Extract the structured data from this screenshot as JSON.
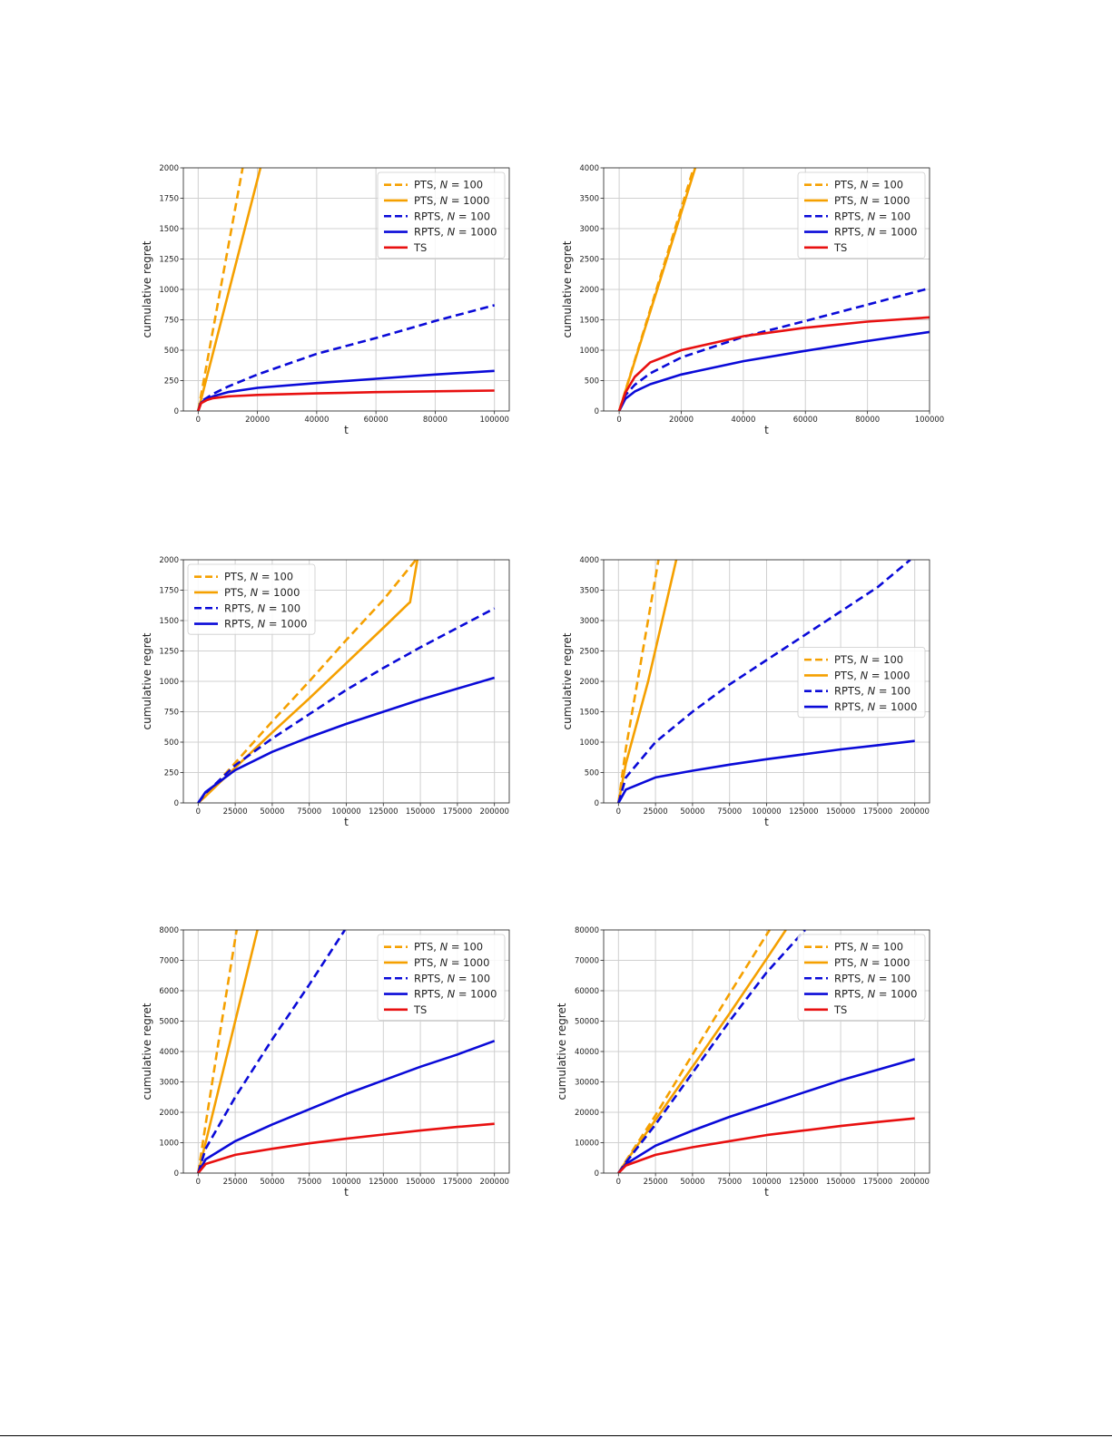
{
  "page": {
    "background": "#ffffff"
  },
  "colors": {
    "orange": "#f5a000",
    "blue": "#0a0ad8",
    "red": "#e81010",
    "grid": "#d0d0d0"
  },
  "chart_data": [
    {
      "type": "line",
      "ylabel": "cumulative regret",
      "xlabel": "t",
      "xlim": [
        -5000,
        105000
      ],
      "ylim": [
        0,
        2000
      ],
      "xticks": [
        0,
        20000,
        40000,
        60000,
        80000,
        100000
      ],
      "yticks": [
        0,
        250,
        500,
        750,
        1000,
        1250,
        1500,
        1750,
        2000
      ],
      "grid": true,
      "legend_position": "top-right",
      "series": [
        {
          "name": "PTS, N = 100",
          "name_prefix": "PTS, ",
          "name_var": "N",
          "name_suffix": " = 100",
          "color": "#f5a000",
          "dash": true,
          "x": [
            0,
            15000
          ],
          "y": [
            0,
            2000
          ]
        },
        {
          "name": "PTS, N = 1000",
          "name_prefix": "PTS, ",
          "name_var": "N",
          "name_suffix": " = 1000",
          "color": "#f5a000",
          "dash": false,
          "x": [
            0,
            21000
          ],
          "y": [
            0,
            2000
          ]
        },
        {
          "name": "RPTS, N = 100",
          "name_prefix": "RPTS, ",
          "name_var": "N",
          "name_suffix": " = 100",
          "color": "#0a0ad8",
          "dash": true,
          "x": [
            0,
            1000,
            3000,
            5000,
            10000,
            20000,
            40000,
            60000,
            80000,
            100000
          ],
          "y": [
            0,
            80,
            110,
            140,
            200,
            300,
            470,
            600,
            740,
            870
          ]
        },
        {
          "name": "RPTS, N = 1000",
          "name_prefix": "RPTS, ",
          "name_var": "N",
          "name_suffix": " = 1000",
          "color": "#0a0ad8",
          "dash": false,
          "x": [
            0,
            1000,
            3000,
            5000,
            10000,
            20000,
            40000,
            60000,
            80000,
            100000
          ],
          "y": [
            0,
            70,
            100,
            120,
            155,
            190,
            230,
            265,
            300,
            330
          ]
        },
        {
          "name": "TS",
          "name_prefix": "TS",
          "name_var": "",
          "name_suffix": "",
          "color": "#e81010",
          "dash": false,
          "x": [
            0,
            1000,
            3000,
            5000,
            10000,
            20000,
            40000,
            60000,
            80000,
            100000
          ],
          "y": [
            0,
            65,
            90,
            105,
            120,
            132,
            145,
            155,
            162,
            168
          ]
        }
      ]
    },
    {
      "type": "line",
      "ylabel": "cumulative regret",
      "xlabel": "t",
      "xlim": [
        -5000,
        100000
      ],
      "ylim": [
        0,
        4000
      ],
      "xticks": [
        0,
        20000,
        40000,
        60000,
        80000,
        100000
      ],
      "yticks": [
        0,
        500,
        1000,
        1500,
        2000,
        2500,
        3000,
        3500,
        4000
      ],
      "grid": true,
      "legend_position": "top-right",
      "series": [
        {
          "name": "PTS, N = 100",
          "name_prefix": "PTS, ",
          "name_var": "N",
          "name_suffix": " = 100",
          "color": "#f5a000",
          "dash": true,
          "x": [
            0,
            24000
          ],
          "y": [
            0,
            4000
          ]
        },
        {
          "name": "PTS, N = 1000",
          "name_prefix": "PTS, ",
          "name_var": "N",
          "name_suffix": " = 1000",
          "color": "#f5a000",
          "dash": false,
          "x": [
            0,
            24500
          ],
          "y": [
            0,
            4000
          ]
        },
        {
          "name": "RPTS, N = 100",
          "name_prefix": "RPTS, ",
          "name_var": "N",
          "name_suffix": " = 100",
          "color": "#0a0ad8",
          "dash": true,
          "x": [
            0,
            2000,
            5000,
            10000,
            20000,
            40000,
            60000,
            80000,
            100000
          ],
          "y": [
            0,
            260,
            430,
            620,
            880,
            1220,
            1480,
            1750,
            2020
          ]
        },
        {
          "name": "RPTS, N = 1000",
          "name_prefix": "RPTS, ",
          "name_var": "N",
          "name_suffix": " = 1000",
          "color": "#0a0ad8",
          "dash": false,
          "x": [
            0,
            2000,
            5000,
            10000,
            20000,
            40000,
            60000,
            80000,
            100000
          ],
          "y": [
            0,
            200,
            320,
            440,
            600,
            820,
            990,
            1150,
            1300
          ]
        },
        {
          "name": "TS",
          "name_prefix": "TS",
          "name_var": "",
          "name_suffix": "",
          "color": "#e81010",
          "dash": false,
          "x": [
            0,
            2000,
            5000,
            10000,
            20000,
            40000,
            60000,
            80000,
            100000
          ],
          "y": [
            0,
            300,
            560,
            800,
            1000,
            1230,
            1370,
            1470,
            1540
          ]
        }
      ]
    },
    {
      "type": "line",
      "ylabel": "cumulative regret",
      "xlabel": "t",
      "xlim": [
        -10000,
        210000
      ],
      "ylim": [
        0,
        2000
      ],
      "xticks": [
        0,
        25000,
        50000,
        75000,
        100000,
        125000,
        150000,
        175000,
        200000
      ],
      "yticks": [
        0,
        250,
        500,
        750,
        1000,
        1250,
        1500,
        1750,
        2000
      ],
      "grid": true,
      "legend_position": "top-left",
      "series": [
        {
          "name": "PTS, N = 100",
          "name_prefix": "PTS, ",
          "name_var": "N",
          "name_suffix": " = 100",
          "color": "#f5a000",
          "dash": true,
          "x": [
            0,
            5000,
            25000,
            50000,
            75000,
            100000,
            125000,
            147000
          ],
          "y": [
            0,
            60,
            330,
            670,
            1000,
            1340,
            1670,
            2000
          ]
        },
        {
          "name": "PTS, N = 1000",
          "name_prefix": "PTS, ",
          "name_var": "N",
          "name_suffix": " = 1000",
          "color": "#f5a000",
          "dash": false,
          "x": [
            0,
            5000,
            25000,
            50000,
            75000,
            100000,
            125000,
            142000,
            143000,
            148000
          ],
          "y": [
            0,
            55,
            290,
            580,
            860,
            1150,
            1440,
            1640,
            1650,
            2000
          ]
        },
        {
          "name": "RPTS, N = 100",
          "name_prefix": "RPTS, ",
          "name_var": "N",
          "name_suffix": " = 100",
          "color": "#0a0ad8",
          "dash": true,
          "x": [
            0,
            5000,
            25000,
            50000,
            75000,
            100000,
            125000,
            150000,
            175000,
            200000
          ],
          "y": [
            0,
            80,
            310,
            530,
            730,
            930,
            1110,
            1280,
            1440,
            1600
          ]
        },
        {
          "name": "RPTS, N = 1000",
          "name_prefix": "RPTS, ",
          "name_var": "N",
          "name_suffix": " = 1000",
          "color": "#0a0ad8",
          "dash": false,
          "x": [
            0,
            5000,
            25000,
            50000,
            75000,
            100000,
            125000,
            150000,
            175000,
            200000
          ],
          "y": [
            0,
            90,
            270,
            420,
            540,
            650,
            750,
            850,
            940,
            1030
          ]
        }
      ]
    },
    {
      "type": "line",
      "ylabel": "cumulative regret",
      "xlabel": "t",
      "xlim": [
        -10000,
        210000
      ],
      "ylim": [
        0,
        4000
      ],
      "xticks": [
        0,
        25000,
        50000,
        75000,
        100000,
        125000,
        150000,
        175000,
        200000
      ],
      "yticks": [
        0,
        500,
        1000,
        1500,
        2000,
        2500,
        3000,
        3500,
        4000
      ],
      "grid": true,
      "legend_position": "center-right",
      "series": [
        {
          "name": "PTS, N = 100",
          "name_prefix": "PTS, ",
          "name_var": "N",
          "name_suffix": " = 100",
          "color": "#f5a000",
          "dash": true,
          "x": [
            0,
            5000,
            15000,
            27000
          ],
          "y": [
            0,
            900,
            2300,
            4000
          ]
        },
        {
          "name": "PTS, N = 1000",
          "name_prefix": "PTS, ",
          "name_var": "N",
          "name_suffix": " = 1000",
          "color": "#f5a000",
          "dash": false,
          "x": [
            0,
            5000,
            20000,
            39000
          ],
          "y": [
            0,
            650,
            2000,
            4000
          ]
        },
        {
          "name": "RPTS, N = 100",
          "name_prefix": "RPTS, ",
          "name_var": "N",
          "name_suffix": " = 100",
          "color": "#0a0ad8",
          "dash": true,
          "x": [
            0,
            5000,
            25000,
            50000,
            75000,
            100000,
            125000,
            150000,
            175000,
            197000
          ],
          "y": [
            0,
            420,
            1000,
            1500,
            1950,
            2350,
            2750,
            3150,
            3550,
            4000
          ]
        },
        {
          "name": "RPTS, N = 1000",
          "name_prefix": "RPTS, ",
          "name_var": "N",
          "name_suffix": " = 1000",
          "color": "#0a0ad8",
          "dash": false,
          "x": [
            0,
            5000,
            25000,
            50000,
            75000,
            100000,
            125000,
            150000,
            175000,
            200000
          ],
          "y": [
            0,
            220,
            420,
            530,
            630,
            720,
            800,
            880,
            950,
            1020
          ]
        }
      ]
    },
    {
      "type": "line",
      "ylabel": "cumulative regret",
      "xlabel": "t",
      "xlim": [
        -10000,
        210000
      ],
      "ylim": [
        0,
        8000
      ],
      "xticks": [
        0,
        25000,
        50000,
        75000,
        100000,
        125000,
        150000,
        175000,
        200000
      ],
      "yticks": [
        0,
        1000,
        2000,
        3000,
        4000,
        5000,
        6000,
        7000,
        8000
      ],
      "grid": true,
      "legend_position": "top-right",
      "series": [
        {
          "name": "PTS, N = 100",
          "name_prefix": "PTS, ",
          "name_var": "N",
          "name_suffix": " = 100",
          "color": "#f5a000",
          "dash": true,
          "x": [
            0,
            5000,
            15000,
            26000
          ],
          "y": [
            0,
            1600,
            4700,
            8000
          ]
        },
        {
          "name": "PTS, N = 1000",
          "name_prefix": "PTS, ",
          "name_var": "N",
          "name_suffix": " = 1000",
          "color": "#f5a000",
          "dash": false,
          "x": [
            0,
            5000,
            20000,
            40000
          ],
          "y": [
            0,
            1000,
            4000,
            8000
          ]
        },
        {
          "name": "RPTS, N = 100",
          "name_prefix": "RPTS, ",
          "name_var": "N",
          "name_suffix": " = 100",
          "color": "#0a0ad8",
          "dash": true,
          "x": [
            0,
            5000,
            25000,
            50000,
            75000,
            99000
          ],
          "y": [
            0,
            800,
            2500,
            4400,
            6200,
            8000
          ]
        },
        {
          "name": "RPTS, N = 1000",
          "name_prefix": "RPTS, ",
          "name_var": "N",
          "name_suffix": " = 1000",
          "color": "#0a0ad8",
          "dash": false,
          "x": [
            0,
            5000,
            25000,
            50000,
            75000,
            100000,
            125000,
            150000,
            175000,
            200000
          ],
          "y": [
            0,
            450,
            1050,
            1600,
            2100,
            2600,
            3050,
            3500,
            3900,
            4350
          ]
        },
        {
          "name": "TS",
          "name_prefix": "TS",
          "name_var": "",
          "name_suffix": "",
          "color": "#e81010",
          "dash": false,
          "x": [
            0,
            5000,
            25000,
            50000,
            75000,
            100000,
            125000,
            150000,
            175000,
            200000
          ],
          "y": [
            0,
            300,
            600,
            800,
            980,
            1130,
            1270,
            1400,
            1520,
            1620
          ]
        }
      ]
    },
    {
      "type": "line",
      "ylabel": "cumulative regret",
      "xlabel": "t",
      "xlim": [
        -10000,
        210000
      ],
      "ylim": [
        0,
        80000
      ],
      "xticks": [
        0,
        25000,
        50000,
        75000,
        100000,
        125000,
        150000,
        175000,
        200000
      ],
      "yticks": [
        0,
        10000,
        20000,
        30000,
        40000,
        50000,
        60000,
        70000,
        80000
      ],
      "grid": true,
      "legend_position": "top-right",
      "series": [
        {
          "name": "PTS, N = 100",
          "name_prefix": "PTS, ",
          "name_var": "N",
          "name_suffix": " = 100",
          "color": "#f5a000",
          "dash": true,
          "x": [
            0,
            5000,
            25000,
            50000,
            75000,
            102000
          ],
          "y": [
            0,
            4000,
            19000,
            39000,
            59000,
            80000
          ]
        },
        {
          "name": "PTS, N = 1000",
          "name_prefix": "PTS, ",
          "name_var": "N",
          "name_suffix": " = 1000",
          "color": "#f5a000",
          "dash": false,
          "x": [
            0,
            5000,
            25000,
            50000,
            75000,
            100000,
            113000
          ],
          "y": [
            0,
            3800,
            17500,
            35000,
            52500,
            70500,
            80000
          ]
        },
        {
          "name": "RPTS, N = 100",
          "name_prefix": "RPTS, ",
          "name_var": "N",
          "name_suffix": " = 100",
          "color": "#0a0ad8",
          "dash": true,
          "x": [
            0,
            5000,
            25000,
            50000,
            75000,
            100000,
            126000
          ],
          "y": [
            0,
            3500,
            16000,
            33000,
            50000,
            66000,
            80000
          ]
        },
        {
          "name": "RPTS, N = 1000",
          "name_prefix": "RPTS, ",
          "name_var": "N",
          "name_suffix": " = 1000",
          "color": "#0a0ad8",
          "dash": false,
          "x": [
            0,
            5000,
            25000,
            50000,
            75000,
            100000,
            125000,
            150000,
            175000,
            200000
          ],
          "y": [
            0,
            3000,
            9000,
            14000,
            18500,
            22500,
            26500,
            30500,
            34000,
            37500
          ]
        },
        {
          "name": "TS",
          "name_prefix": "TS",
          "name_var": "",
          "name_suffix": "",
          "color": "#e81010",
          "dash": false,
          "x": [
            0,
            5000,
            25000,
            50000,
            75000,
            100000,
            125000,
            150000,
            175000,
            200000
          ],
          "y": [
            0,
            2500,
            6000,
            8500,
            10500,
            12500,
            14000,
            15500,
            16800,
            18000
          ]
        }
      ]
    }
  ]
}
